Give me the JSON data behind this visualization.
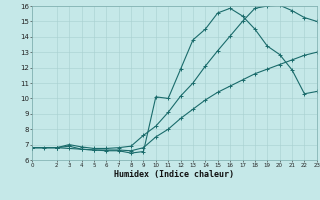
{
  "xlabel": "Humidex (Indice chaleur)",
  "bg_color": "#c5e8e8",
  "grid_color": "#a8d0d0",
  "line_color": "#1a6b6b",
  "xlim": [
    0,
    23
  ],
  "ylim": [
    6,
    16
  ],
  "xticks": [
    0,
    2,
    3,
    4,
    5,
    6,
    7,
    8,
    9,
    10,
    11,
    12,
    13,
    14,
    15,
    16,
    17,
    18,
    19,
    20,
    21,
    22,
    23
  ],
  "yticks": [
    6,
    7,
    8,
    9,
    10,
    11,
    12,
    13,
    14,
    15,
    16
  ],
  "line1_x": [
    0,
    1,
    2,
    3,
    4,
    5,
    6,
    7,
    8,
    9,
    10,
    11,
    12,
    13,
    14,
    15,
    16,
    17,
    18,
    19,
    20,
    21,
    22,
    23
  ],
  "line1_y": [
    6.8,
    6.8,
    6.8,
    6.75,
    6.7,
    6.65,
    6.65,
    6.65,
    6.6,
    6.8,
    7.5,
    8.0,
    8.7,
    9.3,
    9.9,
    10.4,
    10.8,
    11.2,
    11.6,
    11.9,
    12.2,
    12.5,
    12.8,
    13.0
  ],
  "line2_x": [
    0,
    2,
    3,
    4,
    5,
    6,
    7,
    8,
    9,
    10,
    11,
    12,
    13,
    14,
    15,
    16,
    17,
    18,
    19,
    20,
    21,
    22,
    23
  ],
  "line2_y": [
    6.8,
    6.8,
    6.9,
    6.7,
    6.65,
    6.6,
    6.6,
    6.45,
    6.55,
    10.1,
    10.0,
    11.9,
    13.8,
    14.5,
    15.55,
    15.85,
    15.35,
    14.5,
    13.4,
    12.85,
    11.85,
    10.3,
    10.45
  ],
  "line3_x": [
    0,
    2,
    3,
    4,
    5,
    6,
    7,
    8,
    9,
    10,
    11,
    12,
    13,
    14,
    15,
    16,
    17,
    18,
    19,
    20,
    21,
    22,
    23
  ],
  "line3_y": [
    6.8,
    6.8,
    7.0,
    6.85,
    6.75,
    6.75,
    6.8,
    6.9,
    7.6,
    8.2,
    9.1,
    10.15,
    11.0,
    12.1,
    13.1,
    14.05,
    15.0,
    15.85,
    16.0,
    16.05,
    15.7,
    15.25,
    15.0
  ]
}
